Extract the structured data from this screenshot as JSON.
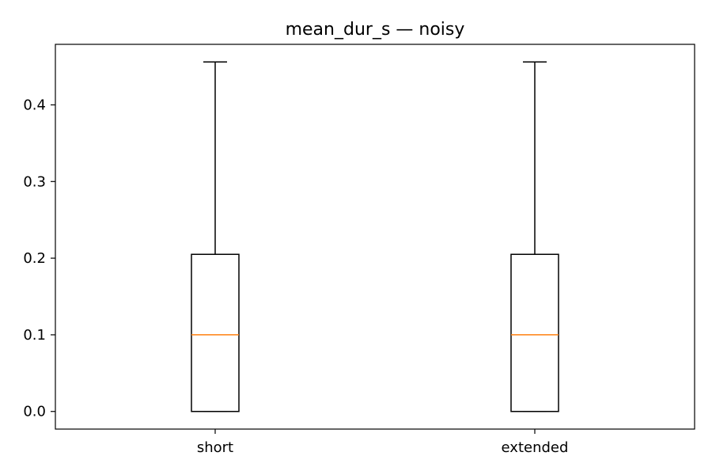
{
  "chart_data": {
    "type": "box",
    "title": "mean_dur_s — noisy",
    "xlabel": "",
    "ylabel": "",
    "categories": [
      "short",
      "extended"
    ],
    "boxes": [
      {
        "category": "short",
        "whisker_low": 0.0,
        "q1": 0.0,
        "median": 0.1,
        "q3": 0.205,
        "whisker_high": 0.456
      },
      {
        "category": "extended",
        "whisker_low": 0.0,
        "q1": 0.0,
        "median": 0.1,
        "q3": 0.205,
        "whisker_high": 0.456
      }
    ],
    "yticks": [
      0.0,
      0.1,
      0.2,
      0.3,
      0.4
    ],
    "ytick_labels": [
      "0.0",
      "0.1",
      "0.2",
      "0.3",
      "0.4"
    ],
    "ylim": [
      -0.023,
      0.479
    ],
    "grid": false,
    "colors": {
      "box": "#000000",
      "median": "#ff7f0e",
      "axes": "#000000"
    }
  }
}
